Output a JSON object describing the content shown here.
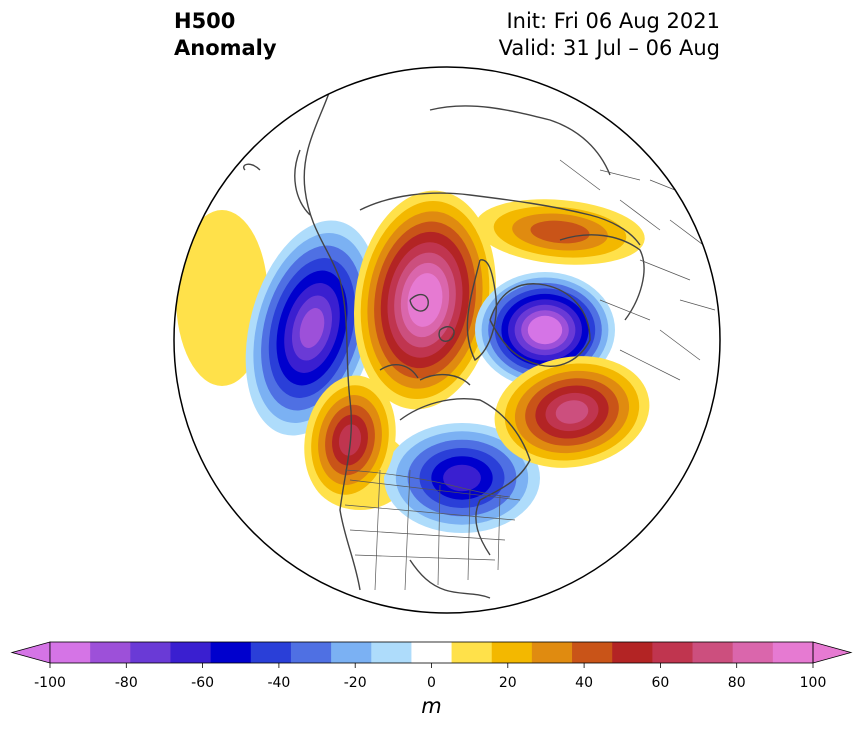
{
  "title": {
    "left_line1": "H500",
    "left_line2": "Anomaly",
    "right_line1": "Init: Fri 06 Aug 2021",
    "right_line2": "Valid: 31 Jul – 06 Aug"
  },
  "map": {
    "projection": "north-polar-stereographic",
    "boundary": "circle",
    "features": [
      "coastlines",
      "country-borders",
      "us-state-borders"
    ]
  },
  "colorbar": {
    "unit": "m",
    "extend": "both",
    "ticks": [
      "-100",
      "-80",
      "-60",
      "-40",
      "-20",
      "0",
      "20",
      "40",
      "60",
      "80",
      "100"
    ],
    "levels": [
      -100,
      -90,
      -80,
      -70,
      -60,
      -50,
      -40,
      -30,
      -20,
      -10,
      10,
      20,
      30,
      40,
      50,
      60,
      70,
      80,
      90,
      100
    ],
    "colors": [
      "#d574e6",
      "#9d50d9",
      "#6a3ad6",
      "#3a1fd0",
      "#0000cd",
      "#2a3fd8",
      "#4f70e3",
      "#7bb1f3",
      "#aedcfb",
      "#ffffff",
      "#ffe14a",
      "#f3b800",
      "#e08b10",
      "#c95418",
      "#b32424",
      "#c0354f",
      "#cc4f7e",
      "#da66ac",
      "#e67ad2"
    ],
    "under_color": "#d574e6",
    "over_color": "#e67ad2"
  },
  "anomalies": [
    {
      "label": "North Pacific trough",
      "sign": "negative",
      "peak_m": -80
    },
    {
      "label": "Arctic / Greenland ridge",
      "sign": "positive",
      "peak_m": 100
    },
    {
      "label": "Scandinavia trough",
      "sign": "negative",
      "peak_m": -100
    },
    {
      "label": "Hudson Bay trough",
      "sign": "negative",
      "peak_m": -60
    },
    {
      "label": "North Atlantic ridge",
      "sign": "positive",
      "peak_m": 70
    },
    {
      "label": "Western North America ridge",
      "sign": "positive",
      "peak_m": 60
    },
    {
      "label": "Siberia ridge",
      "sign": "positive",
      "peak_m": 40
    }
  ]
}
